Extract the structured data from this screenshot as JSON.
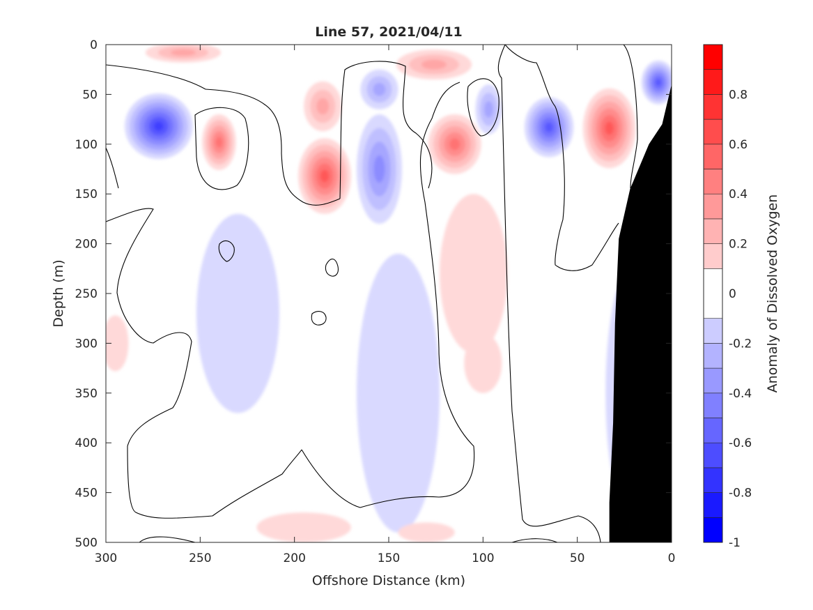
{
  "chart_data": {
    "type": "heatmap",
    "title": "Line 57, 2021/04/11",
    "xlabel": "Offshore Distance (km)",
    "ylabel": "Depth (m)",
    "xlim": [
      300,
      0
    ],
    "ylim": [
      0,
      500
    ],
    "x_ticks": [
      300,
      250,
      200,
      150,
      100,
      50,
      0
    ],
    "y_ticks": [
      0,
      50,
      100,
      150,
      200,
      250,
      300,
      350,
      400,
      450,
      500
    ],
    "colorbar": {
      "label": "Anomaly of Dissolved Oxygen",
      "range": [
        -1,
        1
      ],
      "ticks": [
        0.8,
        0.6,
        0.4,
        0.2,
        0,
        -0.2,
        -0.4,
        -0.6,
        -0.8,
        -1
      ],
      "levels": [
        -1,
        -0.9,
        -0.8,
        -0.7,
        -0.6,
        -0.5,
        -0.4,
        -0.3,
        -0.2,
        -0.1,
        0.1,
        0.2,
        0.3,
        0.4,
        0.5,
        0.6,
        0.7,
        0.8,
        0.9,
        1
      ]
    },
    "colors": {
      "positive": "#ff0000",
      "negative": "#0000ff",
      "neutral": "#ffffff",
      "bathymetry": "#000000",
      "contour": "#000000"
    },
    "features": [
      {
        "x": 272,
        "y": 82,
        "value": -0.65,
        "rx": 18,
        "ry": 33
      },
      {
        "x": 259,
        "y": 8,
        "value": 0.35,
        "rx": 20,
        "ry": 10
      },
      {
        "x": 240,
        "y": 98,
        "value": 0.45,
        "rx": 9,
        "ry": 28
      },
      {
        "x": 184,
        "y": 132,
        "value": 0.6,
        "rx": 14,
        "ry": 38
      },
      {
        "x": 185,
        "y": 62,
        "value": 0.25,
        "rx": 10,
        "ry": 25
      },
      {
        "x": 155,
        "y": 125,
        "value": -0.4,
        "rx": 12,
        "ry": 55
      },
      {
        "x": 155,
        "y": 45,
        "value": -0.3,
        "rx": 10,
        "ry": 20
      },
      {
        "x": 126,
        "y": 20,
        "value": 0.25,
        "rx": 20,
        "ry": 15
      },
      {
        "x": 115,
        "y": 100,
        "value": 0.5,
        "rx": 14,
        "ry": 30
      },
      {
        "x": 97,
        "y": 65,
        "value": -0.25,
        "rx": 7,
        "ry": 25
      },
      {
        "x": 65,
        "y": 83,
        "value": -0.55,
        "rx": 13,
        "ry": 30
      },
      {
        "x": 33,
        "y": 84,
        "value": 0.55,
        "rx": 14,
        "ry": 40
      },
      {
        "x": 7,
        "y": 38,
        "value": -0.6,
        "rx": 9,
        "ry": 22
      },
      {
        "x": 20,
        "y": 350,
        "value": -0.2,
        "rx": 15,
        "ry": 130
      },
      {
        "x": 230,
        "y": 270,
        "value": -0.15,
        "rx": 22,
        "ry": 100
      },
      {
        "x": 145,
        "y": 350,
        "value": -0.15,
        "rx": 22,
        "ry": 140
      },
      {
        "x": 105,
        "y": 230,
        "value": 0.15,
        "rx": 18,
        "ry": 80
      },
      {
        "x": 100,
        "y": 320,
        "value": 0.15,
        "rx": 10,
        "ry": 30
      },
      {
        "x": 295,
        "y": 300,
        "value": 0.15,
        "rx": 7,
        "ry": 28
      },
      {
        "x": 195,
        "y": 485,
        "value": 0.15,
        "rx": 25,
        "ry": 15
      },
      {
        "x": 130,
        "y": 490,
        "value": 0.12,
        "rx": 15,
        "ry": 10
      }
    ],
    "bathymetry": [
      [
        0,
        40
      ],
      [
        5,
        80
      ],
      [
        12,
        100
      ],
      [
        22,
        145
      ],
      [
        28,
        195
      ],
      [
        30,
        280
      ],
      [
        31,
        380
      ],
      [
        33,
        460
      ],
      [
        33,
        500
      ],
      [
        0,
        500
      ]
    ]
  }
}
